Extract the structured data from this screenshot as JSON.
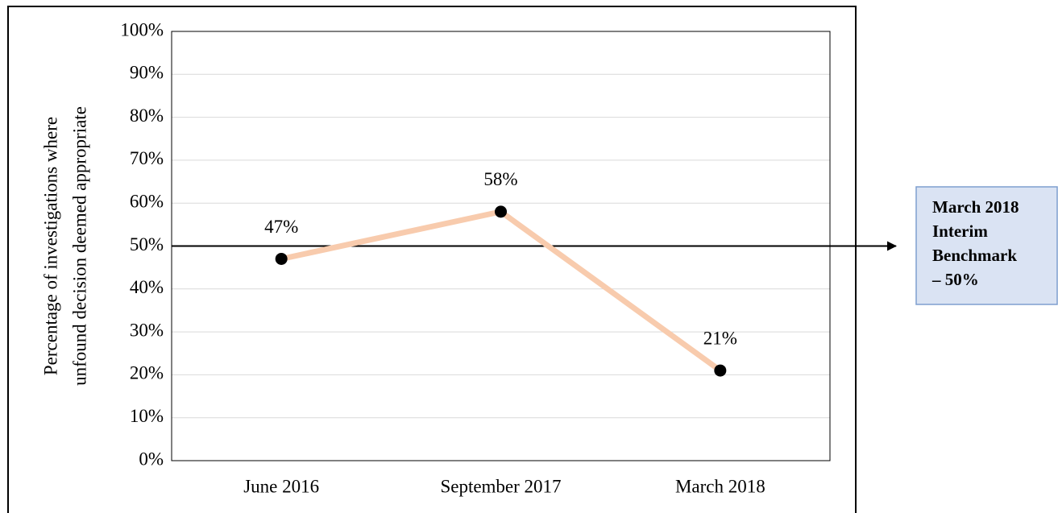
{
  "chart_data": {
    "type": "line",
    "y_label": [
      "Percentage of investigations where",
      "unfound decision deemed appropriate"
    ],
    "categories": [
      "June 2016",
      "September 2017",
      "March 2018"
    ],
    "series": [
      {
        "name": null,
        "color": "#f8cbad",
        "values": [
          47,
          58,
          21
        ],
        "value_labels": [
          "47%",
          "58%",
          "21%"
        ]
      }
    ],
    "ylim": [
      0,
      100
    ],
    "yticks": [
      {
        "value": 0,
        "label": "0%"
      },
      {
        "value": 10,
        "label": "10%"
      },
      {
        "value": 20,
        "label": "20%"
      },
      {
        "value": 30,
        "label": "30%"
      },
      {
        "value": 40,
        "label": "40%"
      },
      {
        "value": 50,
        "label": "50%"
      },
      {
        "value": 60,
        "label": "60%"
      },
      {
        "value": 70,
        "label": "70%"
      },
      {
        "value": 80,
        "label": "80%"
      },
      {
        "value": 90,
        "label": "90%"
      },
      {
        "value": 100,
        "label": "100%"
      }
    ],
    "grid": true,
    "reference_line": {
      "value": 50,
      "label": [
        "March 2018",
        "Interim",
        "Benchmark",
        "– 50%"
      ]
    }
  }
}
